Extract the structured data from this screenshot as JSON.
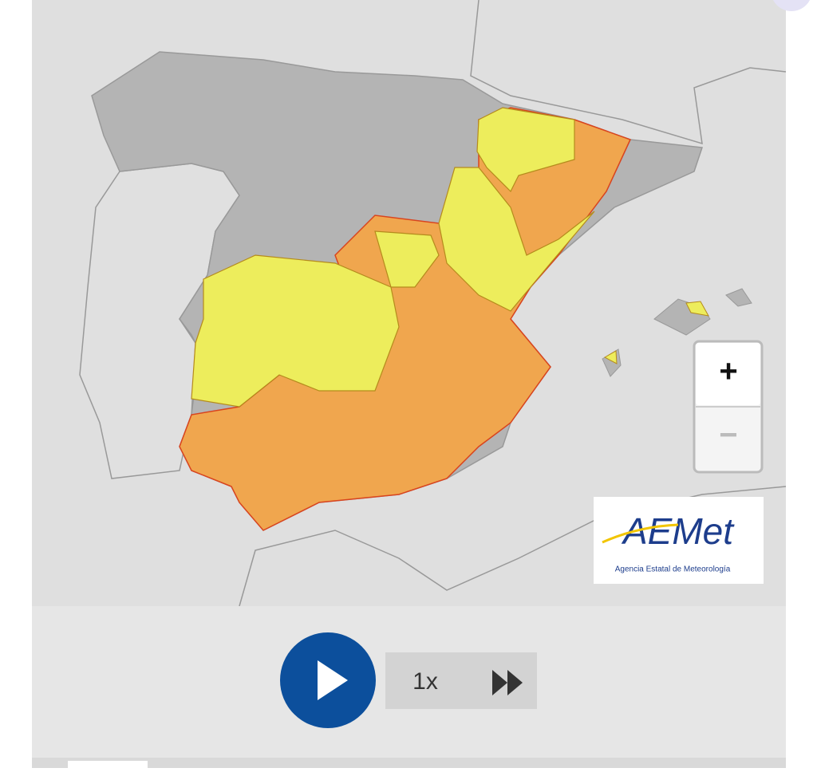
{
  "zoom": {
    "in": "+",
    "out": "−"
  },
  "logo": {
    "name": "AEMet",
    "subtitle": "Agencia Estatal de Meteorología"
  },
  "player": {
    "speed": "1x"
  }
}
